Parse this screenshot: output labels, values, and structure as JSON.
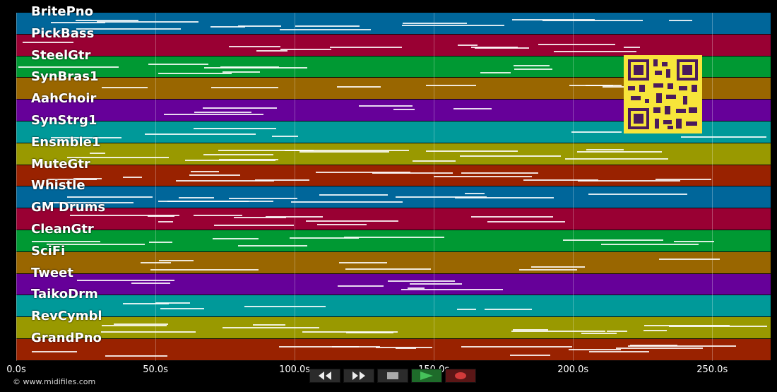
{
  "tracks": [
    {
      "name": "BritePno",
      "color": "#00669a"
    },
    {
      "name": "PickBass",
      "color": "#990033"
    },
    {
      "name": "SteelGtr",
      "color": "#009933"
    },
    {
      "name": "SynBras1",
      "color": "#996600"
    },
    {
      "name": "AahChoir",
      "color": "#660099"
    },
    {
      "name": "SynStrg1",
      "color": "#009999"
    },
    {
      "name": "Ensmble1",
      "color": "#999900"
    },
    {
      "name": "MuteGtr",
      "color": "#992200"
    },
    {
      "name": "Whistle",
      "color": "#00669a"
    },
    {
      "name": "GM Drums",
      "color": "#990033"
    },
    {
      "name": "CleanGtr",
      "color": "#009933"
    },
    {
      "name": "SciFi",
      "color": "#996600"
    },
    {
      "name": "Tweet",
      "color": "#660099"
    },
    {
      "name": "TaikoDrm",
      "color": "#009999"
    },
    {
      "name": "RevCymbl",
      "color": "#999900"
    },
    {
      "name": "GrandPno",
      "color": "#992200"
    }
  ],
  "timeline": {
    "ticks": [
      "0.0s",
      "50.0s",
      "100.0s",
      "150.0s",
      "200.0s",
      "250.0s"
    ],
    "tick_values": [
      0,
      50,
      100,
      150,
      200,
      250
    ],
    "max_seconds": 271
  },
  "transport": {
    "rewind_icon": "rewind-icon",
    "fastforward_icon": "fast-forward-icon",
    "stop_icon": "stop-icon",
    "play_icon": "play-icon",
    "record_icon": "record-icon"
  },
  "footer": {
    "copyright": "© www.midifiles.com"
  }
}
